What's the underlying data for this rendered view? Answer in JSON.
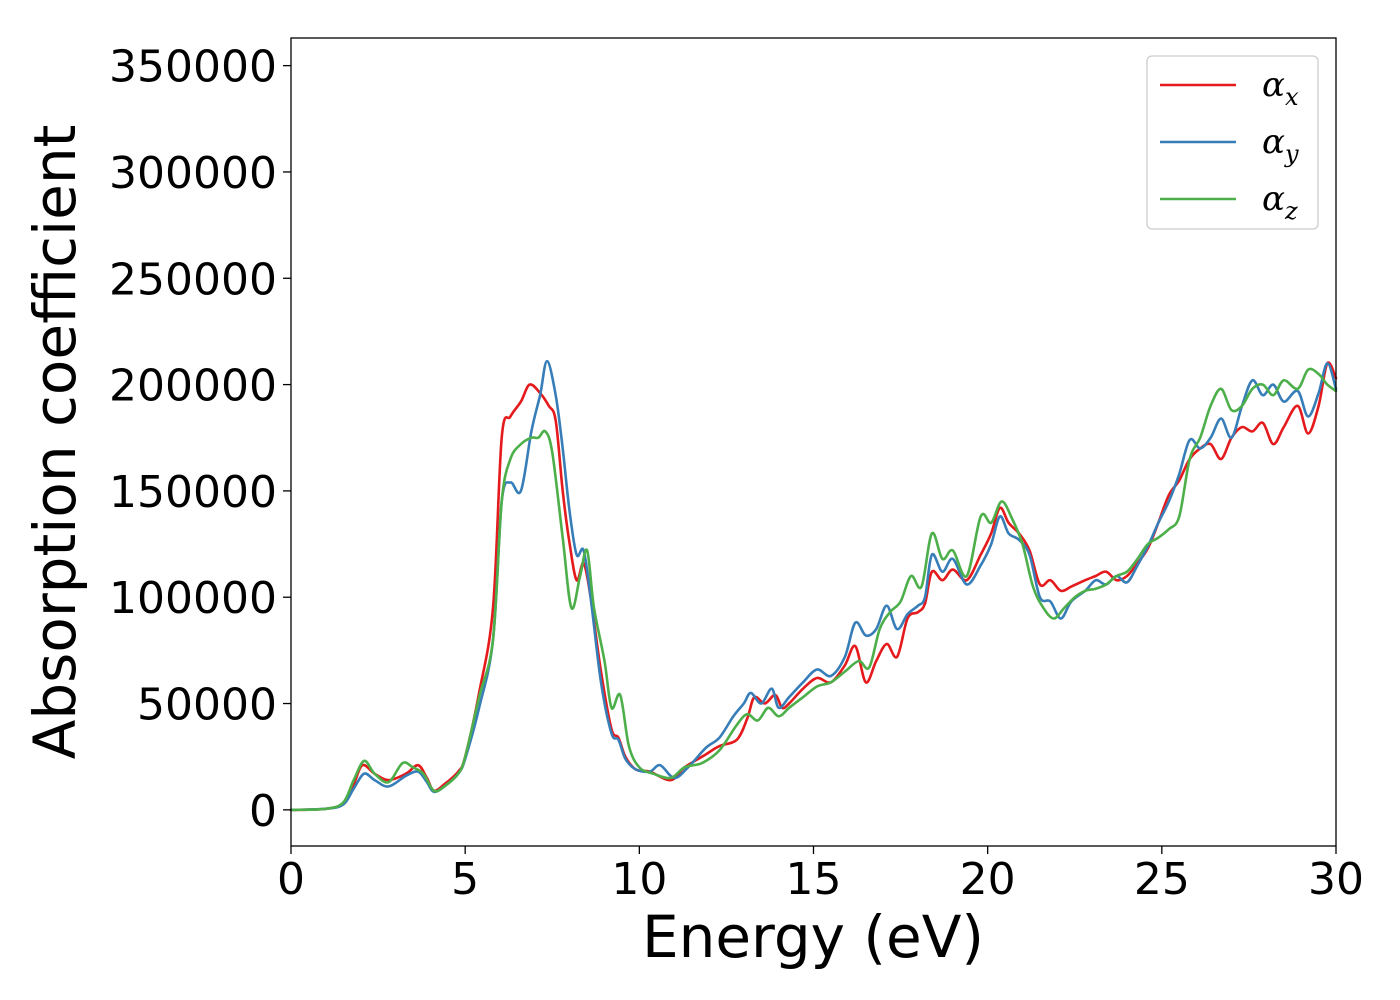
{
  "chart_data": {
    "type": "line",
    "title": "",
    "xlabel": "Energy (eV)",
    "ylabel": "Absorption coefficient",
    "xlim": [
      0,
      30
    ],
    "ylim": [
      -17000,
      363000
    ],
    "xticks": [
      0,
      5,
      10,
      15,
      20,
      25,
      30
    ],
    "yticks": [
      0,
      50000,
      100000,
      150000,
      200000,
      250000,
      300000,
      350000
    ],
    "grid": false,
    "legend_position": "top-right",
    "series": [
      {
        "name": "α",
        "subscript": "x",
        "color": "#e41a1c",
        "x": [
          0,
          1.0,
          1.5,
          1.8,
          2.05,
          2.4,
          2.8,
          3.3,
          3.65,
          3.9,
          4.1,
          4.4,
          4.8,
          5.0,
          5.4,
          5.8,
          6.05,
          6.3,
          6.6,
          6.85,
          7.15,
          7.4,
          7.6,
          7.8,
          8.0,
          8.2,
          8.4,
          8.6,
          8.9,
          9.2,
          9.4,
          9.6,
          9.9,
          10.3,
          10.9,
          11.3,
          11.9,
          12.3,
          12.8,
          13.1,
          13.3,
          13.6,
          13.9,
          14.1,
          14.3,
          14.7,
          15.1,
          15.5,
          15.9,
          16.2,
          16.5,
          16.8,
          17.1,
          17.4,
          17.7,
          18.0,
          18.2,
          18.4,
          18.7,
          19.0,
          19.4,
          19.8,
          20.1,
          20.35,
          20.6,
          20.9,
          21.2,
          21.5,
          21.8,
          22.1,
          22.4,
          22.8,
          23.1,
          23.4,
          23.7,
          24.0,
          24.3,
          24.6,
          24.9,
          25.2,
          25.5,
          25.8,
          26.1,
          26.4,
          26.7,
          27.0,
          27.3,
          27.6,
          27.9,
          28.2,
          28.5,
          28.9,
          29.2,
          29.5,
          29.75,
          30.0
        ],
        "y": [
          0,
          500,
          3000,
          12000,
          21000,
          17000,
          14000,
          17000,
          21000,
          15000,
          9000,
          12000,
          18000,
          25000,
          55000,
          95000,
          175000,
          185000,
          192000,
          200000,
          196000,
          190000,
          183000,
          150000,
          125000,
          108000,
          116000,
          100000,
          65000,
          38000,
          34000,
          25000,
          19000,
          18000,
          14000,
          20000,
          26000,
          30000,
          33000,
          43000,
          53000,
          50000,
          54000,
          48000,
          50000,
          57000,
          62000,
          60000,
          68000,
          77000,
          60000,
          70000,
          78000,
          72000,
          90000,
          93000,
          97000,
          112000,
          108000,
          113000,
          108000,
          120000,
          130000,
          142000,
          135000,
          130000,
          122000,
          106000,
          108000,
          103000,
          105000,
          108000,
          110000,
          112000,
          108000,
          110000,
          116000,
          123000,
          135000,
          148000,
          155000,
          165000,
          170000,
          172000,
          165000,
          175000,
          180000,
          178000,
          182000,
          172000,
          180000,
          190000,
          177000,
          190000,
          210000,
          203000
        ]
      },
      {
        "name": "α",
        "subscript": "y",
        "color": "#377eb8",
        "x": [
          0,
          1.0,
          1.5,
          1.8,
          2.1,
          2.4,
          2.8,
          3.3,
          3.65,
          3.9,
          4.1,
          4.4,
          4.8,
          5.0,
          5.4,
          5.8,
          6.05,
          6.3,
          6.6,
          6.9,
          7.15,
          7.35,
          7.6,
          7.8,
          8.0,
          8.2,
          8.4,
          8.6,
          8.9,
          9.2,
          9.4,
          9.6,
          9.9,
          10.3,
          10.6,
          11.0,
          11.4,
          11.9,
          12.3,
          12.7,
          13.0,
          13.2,
          13.5,
          13.8,
          14.0,
          14.3,
          14.7,
          15.1,
          15.5,
          15.9,
          16.2,
          16.5,
          16.8,
          17.1,
          17.4,
          17.7,
          18.0,
          18.2,
          18.4,
          18.7,
          19.0,
          19.4,
          19.8,
          20.1,
          20.35,
          20.6,
          20.9,
          21.2,
          21.5,
          21.8,
          22.1,
          22.4,
          22.8,
          23.1,
          23.4,
          23.7,
          24.0,
          24.3,
          24.6,
          24.9,
          25.2,
          25.5,
          25.8,
          26.1,
          26.4,
          26.7,
          27.0,
          27.3,
          27.6,
          27.9,
          28.2,
          28.5,
          28.9,
          29.2,
          29.5,
          29.75,
          30.0
        ],
        "y": [
          0,
          500,
          2500,
          10000,
          17000,
          14000,
          11000,
          16000,
          18000,
          13000,
          8500,
          11000,
          17000,
          24000,
          48000,
          80000,
          145000,
          154000,
          150000,
          178000,
          195000,
          211000,
          195000,
          170000,
          140000,
          120000,
          122000,
          100000,
          60000,
          36000,
          33000,
          24000,
          19000,
          18000,
          21000,
          15000,
          20000,
          29000,
          34000,
          44000,
          50000,
          55000,
          50000,
          57000,
          48000,
          53000,
          60000,
          66000,
          63000,
          72000,
          88000,
          82000,
          85000,
          96000,
          85000,
          92000,
          96000,
          100000,
          120000,
          112000,
          118000,
          106000,
          115000,
          125000,
          138000,
          130000,
          127000,
          120000,
          100000,
          98000,
          90000,
          98000,
          103000,
          108000,
          106000,
          110000,
          107000,
          115000,
          124000,
          135000,
          145000,
          158000,
          174000,
          170000,
          175000,
          184000,
          175000,
          190000,
          202000,
          195000,
          200000,
          192000,
          197000,
          185000,
          196000,
          210000,
          198000
        ]
      },
      {
        "name": "α",
        "subscript": "z",
        "color": "#4daf4a",
        "x": [
          0,
          1.0,
          1.5,
          1.8,
          2.1,
          2.4,
          2.8,
          3.2,
          3.5,
          3.8,
          4.1,
          4.4,
          4.8,
          5.0,
          5.4,
          5.8,
          6.05,
          6.3,
          6.6,
          6.9,
          7.1,
          7.3,
          7.5,
          7.8,
          8.05,
          8.3,
          8.5,
          8.7,
          9.0,
          9.2,
          9.45,
          9.7,
          10.0,
          10.4,
          10.9,
          11.3,
          11.8,
          12.3,
          12.8,
          13.1,
          13.4,
          13.7,
          14.0,
          14.3,
          14.7,
          15.1,
          15.5,
          15.9,
          16.3,
          16.6,
          16.9,
          17.2,
          17.5,
          17.8,
          18.1,
          18.4,
          18.7,
          19.0,
          19.4,
          19.8,
          20.1,
          20.4,
          20.7,
          21.0,
          21.3,
          21.6,
          21.9,
          22.2,
          22.5,
          22.8,
          23.1,
          23.4,
          23.7,
          24.0,
          24.3,
          24.6,
          24.9,
          25.2,
          25.5,
          25.8,
          26.1,
          26.4,
          26.7,
          27.0,
          27.3,
          27.6,
          27.9,
          28.2,
          28.5,
          28.9,
          29.2,
          29.5,
          29.75,
          30.0
        ],
        "y": [
          0,
          500,
          3500,
          14000,
          23000,
          17000,
          13000,
          22000,
          20000,
          17000,
          9000,
          11000,
          17000,
          25000,
          53000,
          80000,
          145000,
          165000,
          172000,
          175000,
          175000,
          178000,
          168000,
          128000,
          95000,
          110000,
          122000,
          95000,
          70000,
          48000,
          54000,
          30000,
          20000,
          17000,
          15000,
          20000,
          22000,
          28000,
          40000,
          45000,
          42000,
          48000,
          44000,
          48000,
          53000,
          58000,
          60000,
          65000,
          70000,
          67000,
          85000,
          93000,
          98000,
          110000,
          105000,
          130000,
          118000,
          122000,
          110000,
          138000,
          135000,
          145000,
          137000,
          125000,
          105000,
          95000,
          90000,
          95000,
          100000,
          103000,
          104000,
          106000,
          110000,
          112000,
          118000,
          125000,
          128000,
          132000,
          138000,
          165000,
          175000,
          190000,
          198000,
          188000,
          190000,
          198000,
          200000,
          195000,
          202000,
          198000,
          207000,
          205000,
          200000,
          197000
        ]
      }
    ]
  }
}
